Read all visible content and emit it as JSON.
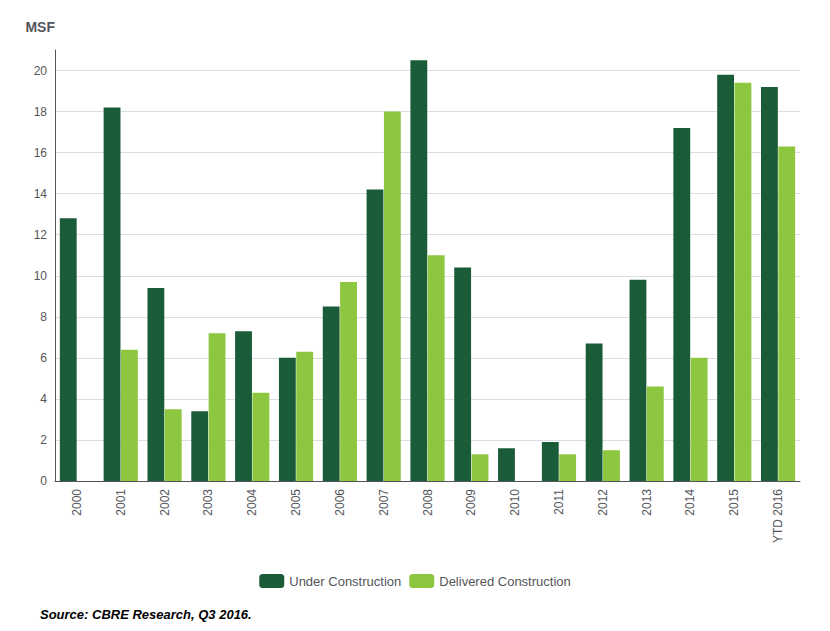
{
  "chart_data": {
    "type": "bar",
    "ylabel": "MSF",
    "annotations": [
      "Source: CBRE Research, Q3 2016."
    ],
    "categories": [
      "2000",
      "2001",
      "2002",
      "2003",
      "2004",
      "2005",
      "2006",
      "2007",
      "2008",
      "2009",
      "2010",
      "2011",
      "2012",
      "2013",
      "2014",
      "2015",
      "YTD 2016"
    ],
    "series": [
      {
        "name": "Under Construction",
        "color": "#1a5c38",
        "values": [
          12.8,
          18.2,
          9.4,
          3.4,
          7.3,
          6.0,
          8.5,
          14.2,
          20.5,
          10.4,
          1.6,
          1.9,
          6.7,
          9.8,
          17.2,
          19.8,
          19.2
        ]
      },
      {
        "name": "Delivered Construction",
        "color": "#8dc63f",
        "values": [
          0,
          6.4,
          3.5,
          7.2,
          4.3,
          6.3,
          9.7,
          18.0,
          11.0,
          1.3,
          0,
          1.3,
          1.5,
          4.6,
          6.0,
          19.4,
          16.3
        ]
      }
    ],
    "ylim": [
      0,
      21
    ],
    "yticks": [
      0,
      2,
      4,
      6,
      8,
      10,
      12,
      14,
      16,
      18,
      20
    ],
    "grid": true,
    "legend": "bottom"
  }
}
